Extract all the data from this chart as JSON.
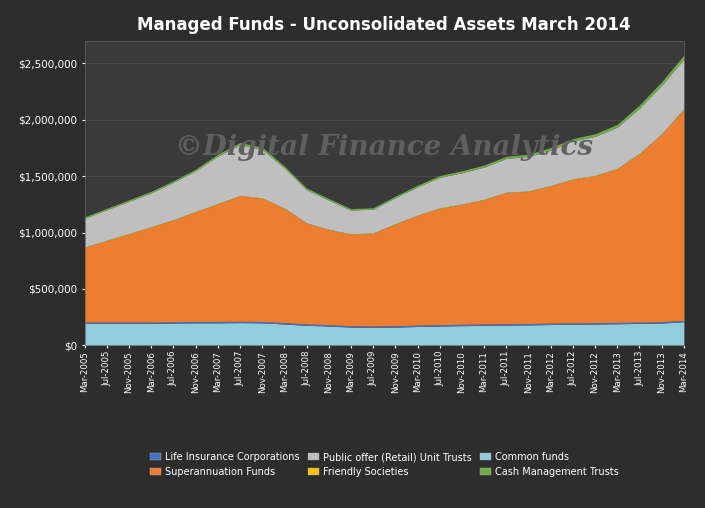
{
  "title": "Managed Funds - Unconsolidated Assets March 2014",
  "watermark": "©Digital Finance Analytics",
  "background_color": "#2d2d2d",
  "plot_bg_color": "#3a3a3a",
  "title_color": "#ffffff",
  "tick_color": "#ffffff",
  "watermark_color": "#505050",
  "ylim": [
    0,
    2700000
  ],
  "yticks": [
    0,
    500000,
    1000000,
    1500000,
    2000000,
    2500000
  ],
  "ytick_labels": [
    "$0",
    "$500,000",
    "$1,000,000",
    "$1,500,000",
    "$2,000,000",
    "$2,500,000"
  ],
  "x_labels": [
    "Mar-2005",
    "Jul-2005",
    "Nov-2005",
    "Mar-2006",
    "Jul-2006",
    "Nov-2006",
    "Mar-2007",
    "Jul-2007",
    "Nov-2007",
    "Mar-2008",
    "Jul-2008",
    "Nov-2008",
    "Mar-2009",
    "Jul-2009",
    "Nov-2009",
    "Mar-2010",
    "Jul-2010",
    "Nov-2010",
    "Mar-2011",
    "Jul-2011",
    "Nov-2011",
    "Mar-2012",
    "Jul-2012",
    "Nov-2012",
    "Mar-2013",
    "Jul-2013",
    "Nov-2013",
    "Mar-2014"
  ],
  "series": {
    "Common funds": {
      "color": "#92cddc",
      "data": [
        195000,
        195000,
        195000,
        195000,
        198000,
        200000,
        200000,
        202000,
        200000,
        190000,
        178000,
        172000,
        162000,
        160000,
        162000,
        168000,
        172000,
        175000,
        178000,
        180000,
        182000,
        185000,
        188000,
        190000,
        192000,
        195000,
        198000,
        210000
      ]
    },
    "Life Insurance Corporations": {
      "color": "#4472c4",
      "data": [
        12000,
        12000,
        12000,
        12000,
        12000,
        12000,
        12000,
        12000,
        12000,
        12000,
        12000,
        12000,
        12000,
        12000,
        12000,
        12000,
        12000,
        12000,
        12000,
        12000,
        12000,
        12000,
        12000,
        12000,
        12000,
        12000,
        12000,
        12000
      ]
    },
    "Superannuation Funds": {
      "color": "#ed7d31",
      "data": [
        660000,
        720000,
        780000,
        840000,
        900000,
        970000,
        1040000,
        1110000,
        1090000,
        1010000,
        890000,
        840000,
        810000,
        820000,
        900000,
        970000,
        1030000,
        1060000,
        1100000,
        1160000,
        1170000,
        1215000,
        1270000,
        1300000,
        1360000,
        1490000,
        1660000,
        1870000
      ]
    },
    "Friendly Societies": {
      "color": "#ffc000",
      "data": [
        5000,
        5000,
        5000,
        5000,
        5000,
        5000,
        5000,
        5000,
        5000,
        5000,
        5000,
        5000,
        5000,
        5000,
        5000,
        5000,
        5000,
        5000,
        5000,
        5000,
        5000,
        5000,
        5000,
        5000,
        5000,
        5000,
        5000,
        5000
      ]
    },
    "Public offer (Retail) Unit Trusts": {
      "color": "#bfbfbf",
      "data": [
        255000,
        270000,
        285000,
        300000,
        330000,
        360000,
        420000,
        450000,
        430000,
        355000,
        295000,
        258000,
        210000,
        210000,
        230000,
        250000,
        270000,
        278000,
        285000,
        300000,
        305000,
        315000,
        335000,
        345000,
        365000,
        400000,
        430000,
        440000
      ]
    },
    "Cash Management Trusts": {
      "color": "#70ad47",
      "data": [
        12000,
        13000,
        13000,
        14000,
        14000,
        15000,
        17000,
        19000,
        19000,
        17000,
        15000,
        14000,
        13000,
        13000,
        14000,
        15000,
        16000,
        17000,
        18000,
        19000,
        20000,
        21000,
        22000,
        23000,
        25000,
        28000,
        31000,
        35000
      ]
    }
  },
  "legend_order": [
    "Life Insurance Corporations",
    "Superannuation Funds",
    "Public offer (Retail) Unit Trusts",
    "Friendly Societies",
    "Common funds",
    "Cash Management Trusts"
  ],
  "legend_colors": {
    "Life Insurance Corporations": "#4472c4",
    "Superannuation Funds": "#ed7d31",
    "Public offer (Retail) Unit Trusts": "#bfbfbf",
    "Friendly Societies": "#ffc000",
    "Common funds": "#92cddc",
    "Cash Management Trusts": "#70ad47"
  },
  "stack_order": [
    "Common funds",
    "Life Insurance Corporations",
    "Superannuation Funds",
    "Friendly Societies",
    "Public offer (Retail) Unit Trusts",
    "Cash Management Trusts"
  ]
}
